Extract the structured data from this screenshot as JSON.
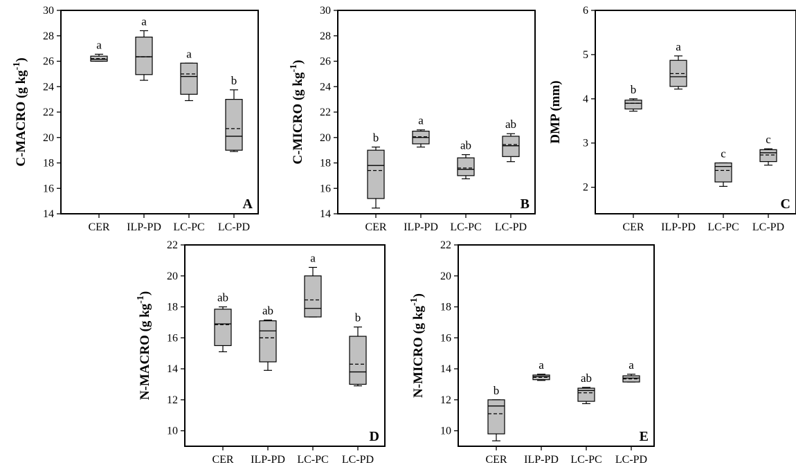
{
  "colors": {
    "box_fill": "#c0c0c0",
    "stroke": "#000000",
    "background": "#ffffff"
  },
  "chart_data": [
    {
      "panel": "A",
      "type": "box",
      "ylabel": "C-MACRO (g kg",
      "ylabel_sup": "-1",
      "ylabel_close": ")",
      "ylim": [
        14,
        30
      ],
      "yticks": [
        14,
        16,
        18,
        20,
        22,
        24,
        26,
        28,
        30
      ],
      "categories": [
        "CER",
        "ILP-PD",
        "LC-PC",
        "LC-PD"
      ],
      "boxes": [
        {
          "whisker_low": 26.0,
          "q1": 26.0,
          "median": 26.15,
          "mean": 26.2,
          "q3": 26.4,
          "whisker_high": 26.55,
          "letter": "a"
        },
        {
          "whisker_low": 24.5,
          "q1": 24.95,
          "median": 26.35,
          "mean": 26.35,
          "q3": 27.9,
          "whisker_high": 28.4,
          "letter": "a"
        },
        {
          "whisker_low": 22.9,
          "q1": 23.4,
          "median": 24.8,
          "mean": 25.0,
          "q3": 25.85,
          "whisker_high": 25.85,
          "letter": "a"
        },
        {
          "whisker_low": 18.9,
          "q1": 19.0,
          "median": 20.1,
          "mean": 20.7,
          "q3": 23.0,
          "whisker_high": 23.75,
          "letter": "b"
        }
      ]
    },
    {
      "panel": "B",
      "type": "box",
      "ylabel": "C-MICRO (g kg",
      "ylabel_sup": "-1",
      "ylabel_close": ")",
      "ylim": [
        14,
        30
      ],
      "yticks": [
        14,
        16,
        18,
        20,
        22,
        24,
        26,
        28,
        30
      ],
      "categories": [
        "CER",
        "ILP-PD",
        "LC-PC",
        "LC-PD"
      ],
      "boxes": [
        {
          "whisker_low": 14.45,
          "q1": 15.2,
          "median": 17.8,
          "mean": 17.4,
          "q3": 19.0,
          "whisker_high": 19.25,
          "letter": "b"
        },
        {
          "whisker_low": 19.25,
          "q1": 19.5,
          "median": 20.0,
          "mean": 20.05,
          "q3": 20.5,
          "whisker_high": 20.6,
          "letter": "a"
        },
        {
          "whisker_low": 16.75,
          "q1": 17.0,
          "median": 17.5,
          "mean": 17.6,
          "q3": 18.4,
          "whisker_high": 18.65,
          "letter": "ab"
        },
        {
          "whisker_low": 18.1,
          "q1": 18.5,
          "median": 19.35,
          "mean": 19.45,
          "q3": 20.1,
          "whisker_high": 20.3,
          "letter": "ab"
        }
      ]
    },
    {
      "panel": "C",
      "type": "box",
      "ylabel": "DMP (mm)",
      "ylabel_sup": "",
      "ylabel_close": "",
      "ylim": [
        1.4,
        6
      ],
      "yticks": [
        2,
        3,
        4,
        5,
        6
      ],
      "categories": [
        "CER",
        "ILP-PD",
        "LC-PC",
        "LC-PD"
      ],
      "boxes": [
        {
          "whisker_low": 3.72,
          "q1": 3.77,
          "median": 3.9,
          "mean": 3.9,
          "q3": 3.97,
          "whisker_high": 4.0,
          "letter": "b"
        },
        {
          "whisker_low": 4.22,
          "q1": 4.28,
          "median": 4.5,
          "mean": 4.57,
          "q3": 4.87,
          "whisker_high": 4.97,
          "letter": "a"
        },
        {
          "whisker_low": 2.02,
          "q1": 2.12,
          "median": 2.47,
          "mean": 2.38,
          "q3": 2.55,
          "whisker_high": 2.55,
          "letter": "c"
        },
        {
          "whisker_low": 2.5,
          "q1": 2.58,
          "median": 2.78,
          "mean": 2.73,
          "q3": 2.85,
          "whisker_high": 2.87,
          "letter": "c"
        }
      ]
    },
    {
      "panel": "D",
      "type": "box",
      "ylabel": "N-MACRO (g kg",
      "ylabel_sup": "-1",
      "ylabel_close": ")",
      "ylim": [
        9,
        22
      ],
      "yticks": [
        10,
        12,
        14,
        16,
        18,
        20,
        22
      ],
      "categories": [
        "CER",
        "ILP-PD",
        "LC-PC",
        "LC-PD"
      ],
      "boxes": [
        {
          "whisker_low": 15.1,
          "q1": 15.5,
          "median": 16.9,
          "mean": 16.85,
          "q3": 17.85,
          "whisker_high": 18.0,
          "letter": "ab"
        },
        {
          "whisker_low": 13.9,
          "q1": 14.45,
          "median": 16.45,
          "mean": 16.0,
          "q3": 17.1,
          "whisker_high": 17.15,
          "letter": "ab"
        },
        {
          "whisker_low": 17.35,
          "q1": 17.35,
          "median": 17.9,
          "mean": 18.45,
          "q3": 20.0,
          "whisker_high": 20.55,
          "letter": "a"
        },
        {
          "whisker_low": 12.9,
          "q1": 13.0,
          "median": 13.8,
          "mean": 14.3,
          "q3": 16.1,
          "whisker_high": 16.7,
          "letter": "b"
        }
      ]
    },
    {
      "panel": "E",
      "type": "box",
      "ylabel": "N-MICRO (g kg",
      "ylabel_sup": "-1",
      "ylabel_close": ")",
      "ylim": [
        9,
        22
      ],
      "yticks": [
        10,
        12,
        14,
        16,
        18,
        20,
        22
      ],
      "categories": [
        "CER",
        "ILP-PD",
        "LC-PC",
        "LC-PD"
      ],
      "boxes": [
        {
          "whisker_low": 9.35,
          "q1": 9.8,
          "median": 11.6,
          "mean": 11.1,
          "q3": 12.0,
          "whisker_high": 12.0,
          "letter": "b"
        },
        {
          "whisker_low": 13.25,
          "q1": 13.3,
          "median": 13.5,
          "mean": 13.45,
          "q3": 13.6,
          "whisker_high": 13.65,
          "letter": "a"
        },
        {
          "whisker_low": 11.75,
          "q1": 11.9,
          "median": 12.6,
          "mean": 12.45,
          "q3": 12.75,
          "whisker_high": 12.8,
          "letter": "ab"
        },
        {
          "whisker_low": 13.15,
          "q1": 13.15,
          "median": 13.4,
          "mean": 13.35,
          "q3": 13.55,
          "whisker_high": 13.65,
          "letter": "a"
        }
      ]
    }
  ]
}
